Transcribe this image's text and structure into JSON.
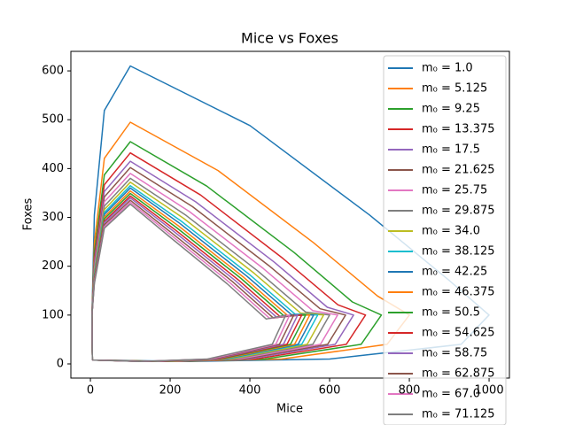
{
  "chart_data": {
    "type": "line",
    "title": "Mice vs Foxes",
    "x_label": "Mice",
    "y_label": "Foxes",
    "xlim": [
      -49,
      1051
    ],
    "ylim": [
      -29,
      640
    ],
    "xticks": [
      0,
      200,
      400,
      600,
      800,
      1000
    ],
    "yticks": [
      0,
      100,
      200,
      300,
      400,
      500,
      600
    ],
    "legend": "upper right",
    "series": [
      {
        "name": "m₀ = 1.0",
        "color": "#1f77b4",
        "x": [
          5,
          4,
          10,
          35,
          100,
          400,
          700,
          900,
          1000,
          930,
          600,
          250,
          5
        ],
        "values": [
          8,
          100,
          305,
          519,
          610,
          488,
          305,
          171,
          100,
          40,
          10,
          5,
          8
        ]
      },
      {
        "name": "m₀ = 5.125",
        "color": "#ff7f0e",
        "x": [
          5,
          4,
          10,
          35,
          100,
          320,
          560,
          720,
          800,
          744,
          480,
          200,
          5
        ],
        "values": [
          8,
          100,
          248,
          421,
          495,
          396,
          248,
          139,
          100,
          40,
          10,
          5,
          8
        ]
      },
      {
        "name": "m₀ = 9.25",
        "color": "#2ca02c",
        "x": [
          5,
          4,
          10,
          35,
          100,
          292,
          511,
          657,
          730,
          679,
          438,
          183,
          5
        ],
        "values": [
          8,
          100,
          228,
          387,
          455,
          364,
          228,
          127,
          100,
          40,
          10,
          5,
          8
        ]
      },
      {
        "name": "m₀ = 13.375",
        "color": "#d62728",
        "x": [
          5,
          4,
          10,
          35,
          100,
          276,
          483,
          621,
          690,
          642,
          414,
          173,
          5
        ],
        "values": [
          8,
          100,
          216,
          367,
          432,
          346,
          216,
          121,
          100,
          40,
          10,
          5,
          8
        ]
      },
      {
        "name": "m₀ = 17.5",
        "color": "#9467bd",
        "x": [
          5,
          4,
          10,
          35,
          100,
          264,
          462,
          594,
          660,
          614,
          396,
          165,
          5
        ],
        "values": [
          8,
          100,
          208,
          353,
          415,
          332,
          208,
          116,
          100,
          40,
          10,
          5,
          8
        ]
      },
      {
        "name": "m₀ = 21.625",
        "color": "#8c564b",
        "x": [
          5,
          4,
          10,
          35,
          100,
          256,
          448,
          576,
          640,
          595,
          384,
          160,
          5
        ],
        "values": [
          8,
          100,
          201,
          342,
          402,
          322,
          201,
          113,
          100,
          40,
          10,
          5,
          8
        ]
      },
      {
        "name": "m₀ = 25.75",
        "color": "#e377c2",
        "x": [
          5,
          4,
          10,
          35,
          100,
          248,
          434,
          558,
          620,
          577,
          372,
          155,
          5
        ],
        "values": [
          8,
          100,
          195,
          332,
          390,
          312,
          195,
          109,
          100,
          40,
          10,
          5,
          8
        ]
      },
      {
        "name": "m₀ = 29.875",
        "color": "#7f7f7f",
        "x": [
          5,
          4,
          10,
          35,
          100,
          240,
          420,
          540,
          600,
          558,
          360,
          150,
          5
        ],
        "values": [
          8,
          100,
          190,
          323,
          380,
          304,
          190,
          106,
          100,
          40,
          10,
          5,
          8
        ]
      },
      {
        "name": "m₀ = 34.0",
        "color": "#bcbd22",
        "x": [
          5,
          4,
          10,
          35,
          100,
          234,
          410,
          527,
          585,
          544,
          351,
          146,
          5
        ],
        "values": [
          8,
          100,
          186,
          316,
          372,
          298,
          186,
          104,
          100,
          40,
          10,
          5,
          8
        ]
      },
      {
        "name": "m₀ = 38.125",
        "color": "#17becf",
        "x": [
          5,
          4,
          10,
          35,
          100,
          228,
          399,
          513,
          570,
          530,
          342,
          143,
          5
        ],
        "values": [
          8,
          100,
          183,
          310,
          365,
          292,
          183,
          102,
          100,
          40,
          10,
          5,
          8
        ]
      },
      {
        "name": "m₀ = 42.25",
        "color": "#1f77b4",
        "x": [
          5,
          4,
          10,
          35,
          100,
          224,
          392,
          504,
          560,
          521,
          336,
          140,
          5
        ],
        "values": [
          8,
          100,
          180,
          306,
          360,
          288,
          180,
          101,
          100,
          40,
          10,
          5,
          8
        ]
      },
      {
        "name": "m₀ = 46.375",
        "color": "#ff7f0e",
        "x": [
          5,
          4,
          10,
          35,
          100,
          220,
          385,
          495,
          550,
          512,
          330,
          138,
          5
        ],
        "values": [
          8,
          100,
          177,
          301,
          354,
          283,
          177,
          99,
          100,
          40,
          10,
          5,
          8
        ]
      },
      {
        "name": "m₀ = 50.5",
        "color": "#2ca02c",
        "x": [
          5,
          4,
          10,
          35,
          100,
          216,
          378,
          486,
          540,
          502,
          324,
          135,
          5
        ],
        "values": [
          8,
          100,
          175,
          297,
          349,
          279,
          175,
          98,
          100,
          40,
          10,
          5,
          8
        ]
      },
      {
        "name": "m₀ = 54.625",
        "color": "#d62728",
        "x": [
          5,
          4,
          10,
          35,
          100,
          212,
          371,
          477,
          530,
          493,
          318,
          133,
          5
        ],
        "values": [
          8,
          100,
          172,
          292,
          344,
          275,
          172,
          96,
          100,
          40,
          10,
          5,
          8
        ]
      },
      {
        "name": "m₀ = 58.75",
        "color": "#9467bd",
        "x": [
          5,
          4,
          10,
          35,
          100,
          208,
          364,
          468,
          520,
          484,
          312,
          130,
          5
        ],
        "values": [
          8,
          100,
          170,
          289,
          340,
          272,
          170,
          95,
          100,
          40,
          10,
          5,
          8
        ]
      },
      {
        "name": "m₀ = 62.875",
        "color": "#8c564b",
        "x": [
          5,
          4,
          10,
          35,
          100,
          204,
          357,
          459,
          510,
          474,
          306,
          128,
          5
        ],
        "values": [
          8,
          100,
          168,
          285,
          335,
          268,
          168,
          94,
          100,
          40,
          10,
          5,
          8
        ]
      },
      {
        "name": "m₀ = 67.0",
        "color": "#e377c2",
        "x": [
          5,
          4,
          10,
          35,
          100,
          200,
          350,
          450,
          500,
          465,
          300,
          125,
          5
        ],
        "values": [
          8,
          100,
          166,
          281,
          331,
          265,
          166,
          93,
          100,
          40,
          10,
          5,
          8
        ]
      },
      {
        "name": "m₀ = 71.125",
        "color": "#7f7f7f",
        "x": [
          5,
          4,
          10,
          35,
          100,
          196,
          343,
          441,
          490,
          456,
          294,
          123,
          5
        ],
        "values": [
          8,
          100,
          164,
          278,
          327,
          262,
          164,
          92,
          100,
          40,
          10,
          5,
          8
        ]
      }
    ]
  }
}
